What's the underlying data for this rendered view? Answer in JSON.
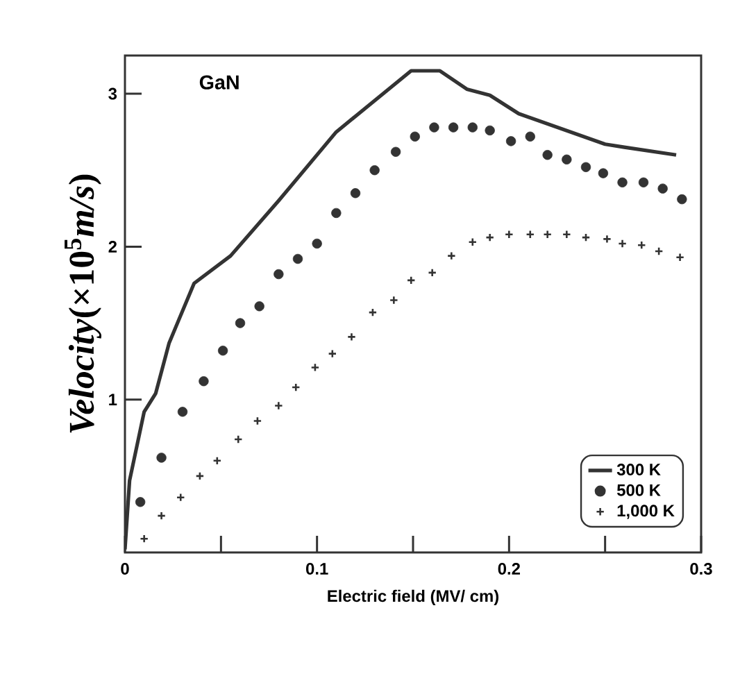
{
  "chart_data": {
    "type": "line",
    "xlabel": "Electric field (MV/ cm)",
    "ylabel": "*Velocity*(×10$^{5}$*m/s*)",
    "annotations": [
      "GaN"
    ],
    "xlim": [
      0,
      0.3
    ],
    "ylim": [
      0,
      3.25
    ],
    "xticks": [
      0,
      {
        "value": 0.05,
        "label": null
      },
      0.1,
      {
        "value": 0.15,
        "label": null
      },
      0.2,
      {
        "value": 0.25,
        "label": null
      },
      0.3
    ],
    "yticks": [
      1,
      2,
      3
    ],
    "grid": false,
    "legend": "bottom right",
    "series": [
      {
        "name": "300 K",
        "marker": "none",
        "line_style": "solid",
        "color": "#333333",
        "x": [
          0,
          0.0024,
          0.01,
          0.016,
          0.023,
          0.036,
          0.055,
          0.08,
          0.11,
          0.149,
          0.164,
          0.178,
          0.19,
          0.205,
          0.25,
          0.26,
          0.287
        ],
        "values": [
          0.02,
          0.47,
          0.92,
          1.04,
          1.37,
          1.76,
          1.94,
          2.3,
          2.75,
          3.15,
          3.15,
          3.03,
          2.99,
          2.87,
          2.67,
          2.65,
          2.6
        ]
      },
      {
        "name": "500 K",
        "type": "scatter",
        "marker": "circle",
        "color": "#333333",
        "x": [
          0.008,
          0.019,
          0.03,
          0.041,
          0.051,
          0.06,
          0.07,
          0.08,
          0.09,
          0.1,
          0.11,
          0.12,
          0.13,
          0.141,
          0.151,
          0.161,
          0.171,
          0.181,
          0.19,
          0.201,
          0.211,
          0.22,
          0.23,
          0.24,
          0.249,
          0.259,
          0.27,
          0.28,
          0.29
        ],
        "values": [
          0.33,
          0.62,
          0.92,
          1.12,
          1.32,
          1.5,
          1.61,
          1.82,
          1.92,
          2.02,
          2.22,
          2.35,
          2.5,
          2.62,
          2.72,
          2.78,
          2.78,
          2.78,
          2.76,
          2.69,
          2.72,
          2.6,
          2.57,
          2.52,
          2.48,
          2.42,
          2.42,
          2.38,
          2.31
        ]
      },
      {
        "name": "1,000 K",
        "type": "scatter",
        "marker": "cross",
        "color": "#333333",
        "x": [
          0.01,
          0.019,
          0.029,
          0.039,
          0.048,
          0.059,
          0.069,
          0.08,
          0.089,
          0.099,
          0.108,
          0.118,
          0.129,
          0.14,
          0.149,
          0.16,
          0.17,
          0.181,
          0.19,
          0.2,
          0.211,
          0.22,
          0.23,
          0.24,
          0.251,
          0.259,
          0.269,
          0.278,
          0.289
        ],
        "values": [
          0.09,
          0.24,
          0.36,
          0.5,
          0.6,
          0.74,
          0.86,
          0.96,
          1.08,
          1.21,
          1.3,
          1.41,
          1.57,
          1.65,
          1.78,
          1.83,
          1.94,
          2.03,
          2.06,
          2.08,
          2.08,
          2.08,
          2.08,
          2.06,
          2.05,
          2.02,
          2.01,
          1.97,
          1.93
        ]
      }
    ]
  }
}
